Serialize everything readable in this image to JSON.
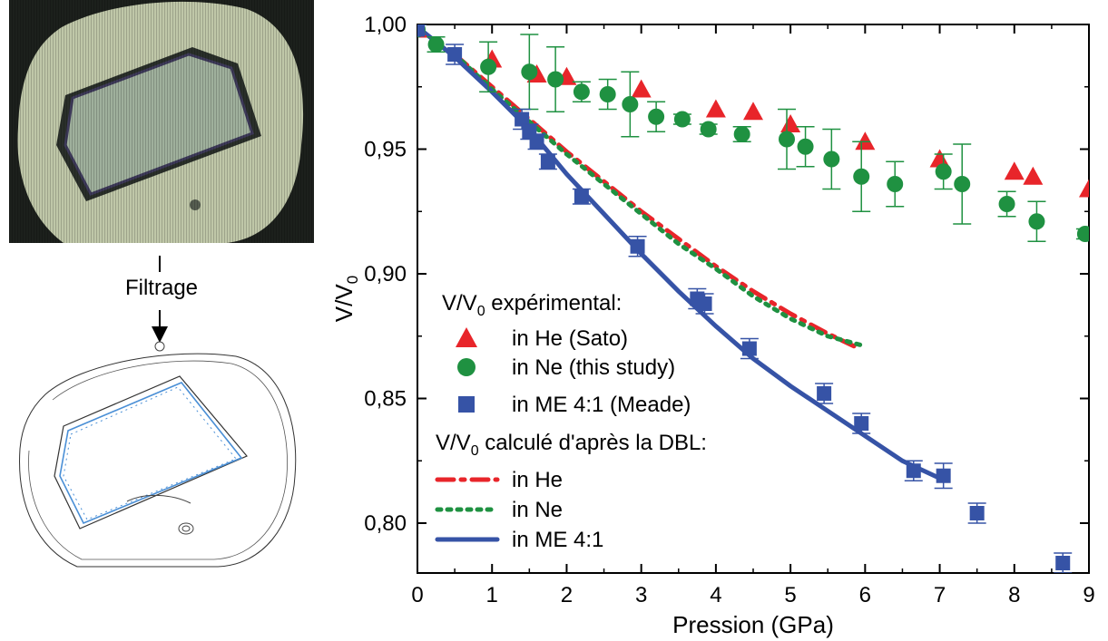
{
  "colors": {
    "he": "#e8252a",
    "ne": "#1f9141",
    "me": "#3653a6",
    "axis": "#000000",
    "photo_bg": "#1c201c",
    "photo_gasket": "#bfc7a8",
    "photo_sample": "#9fb09c",
    "edge_line": "#4a8fd6"
  },
  "icons": {
    "flow_arrow": "down-arrow-icon"
  },
  "filter_label": "Filtrage",
  "chart_data": {
    "type": "scatter",
    "xlabel": "Pression (GPa)",
    "ylabel": "V/V0",
    "xlim": [
      0,
      9
    ],
    "ylim": [
      0.78,
      1.0
    ],
    "xticks": [
      0,
      1,
      2,
      3,
      4,
      5,
      6,
      7,
      8,
      9
    ],
    "xtick_labels": [
      "0",
      "1",
      "2",
      "3",
      "4",
      "5",
      "6",
      "7",
      "8",
      "9"
    ],
    "yticks": [
      0.8,
      0.85,
      0.9,
      0.95,
      1.0
    ],
    "ytick_labels": [
      "0,80",
      "0,85",
      "0,90",
      "0,95",
      "1,00"
    ],
    "grid": false,
    "legend": {
      "position": "bottom-center",
      "header_experimental": "V/V0 expérimental:",
      "header_calculated": "V/V0 calculé d'après la DBL:"
    },
    "series": [
      {
        "name": "in He (Sato)",
        "kind": "markers",
        "marker": "triangle",
        "color": "#e8252a",
        "x": [
          0.0,
          1.0,
          1.6,
          2.0,
          3.0,
          4.0,
          4.5,
          5.0,
          6.0,
          7.0,
          8.0,
          8.25,
          9.0
        ],
        "y": [
          0.998,
          0.986,
          0.98,
          0.979,
          0.974,
          0.966,
          0.965,
          0.96,
          0.953,
          0.946,
          0.941,
          0.939,
          0.934
        ]
      },
      {
        "name": "in Ne (this study)",
        "kind": "markers",
        "marker": "circle",
        "color": "#1f9141",
        "x": [
          0.0,
          0.25,
          0.95,
          1.5,
          1.85,
          2.2,
          2.55,
          2.85,
          3.2,
          3.55,
          3.9,
          4.35,
          4.95,
          5.2,
          5.55,
          5.95,
          6.4,
          7.05,
          7.3,
          7.9,
          8.3,
          8.95
        ],
        "y": [
          0.998,
          0.992,
          0.983,
          0.981,
          0.978,
          0.973,
          0.972,
          0.968,
          0.963,
          0.962,
          0.958,
          0.956,
          0.954,
          0.951,
          0.946,
          0.939,
          0.936,
          0.941,
          0.936,
          0.928,
          0.921,
          0.916
        ],
        "err": [
          0.002,
          0.003,
          0.01,
          0.015,
          0.013,
          0.004,
          0.006,
          0.013,
          0.006,
          0.002,
          0.002,
          0.003,
          0.012,
          0.008,
          0.012,
          0.014,
          0.009,
          0.007,
          0.016,
          0.005,
          0.008,
          0.002
        ]
      },
      {
        "name": "in ME 4:1 (Meade)",
        "kind": "markers",
        "marker": "square",
        "color": "#3653a6",
        "x": [
          0.0,
          0.5,
          1.4,
          1.5,
          1.6,
          1.75,
          2.2,
          2.95,
          3.75,
          3.85,
          4.45,
          5.45,
          5.95,
          6.65,
          7.05,
          7.5,
          8.65
        ],
        "y": [
          0.998,
          0.988,
          0.962,
          0.957,
          0.953,
          0.945,
          0.931,
          0.911,
          0.89,
          0.888,
          0.87,
          0.852,
          0.84,
          0.821,
          0.819,
          0.804,
          0.784
        ],
        "err": [
          0.002,
          0.004,
          0.004,
          0.003,
          0.003,
          0.003,
          0.003,
          0.004,
          0.004,
          0.004,
          0.004,
          0.004,
          0.004,
          0.004,
          0.005,
          0.004,
          0.004
        ]
      },
      {
        "name": "in He",
        "kind": "line",
        "style": "dash-dot",
        "color": "#e8252a",
        "x": [
          0.5,
          1.0,
          1.5,
          2.0,
          2.5,
          3.0,
          3.5,
          4.0,
          4.5,
          5.0,
          5.5,
          5.85
        ],
        "y": [
          0.988,
          0.975,
          0.962,
          0.949,
          0.937,
          0.925,
          0.914,
          0.903,
          0.893,
          0.884,
          0.876,
          0.871
        ]
      },
      {
        "name": "in Ne",
        "kind": "line",
        "style": "dotted",
        "color": "#1f9141",
        "x": [
          0.5,
          1.0,
          1.5,
          2.0,
          2.5,
          3.0,
          3.5,
          4.0,
          4.5,
          5.0,
          5.5,
          6.0
        ],
        "y": [
          0.988,
          0.974,
          0.961,
          0.948,
          0.936,
          0.924,
          0.912,
          0.902,
          0.891,
          0.882,
          0.875,
          0.871
        ]
      },
      {
        "name": "in ME 4:1",
        "kind": "line",
        "style": "solid",
        "color": "#3653a6",
        "x": [
          0.0,
          0.5,
          1.0,
          1.5,
          2.0,
          2.5,
          3.0,
          3.5,
          4.0,
          4.5,
          5.0,
          5.5,
          6.0,
          6.5,
          7.0
        ],
        "y": [
          0.999,
          0.987,
          0.973,
          0.958,
          0.94,
          0.924,
          0.908,
          0.893,
          0.879,
          0.866,
          0.855,
          0.845,
          0.835,
          0.825,
          0.818
        ]
      }
    ]
  }
}
